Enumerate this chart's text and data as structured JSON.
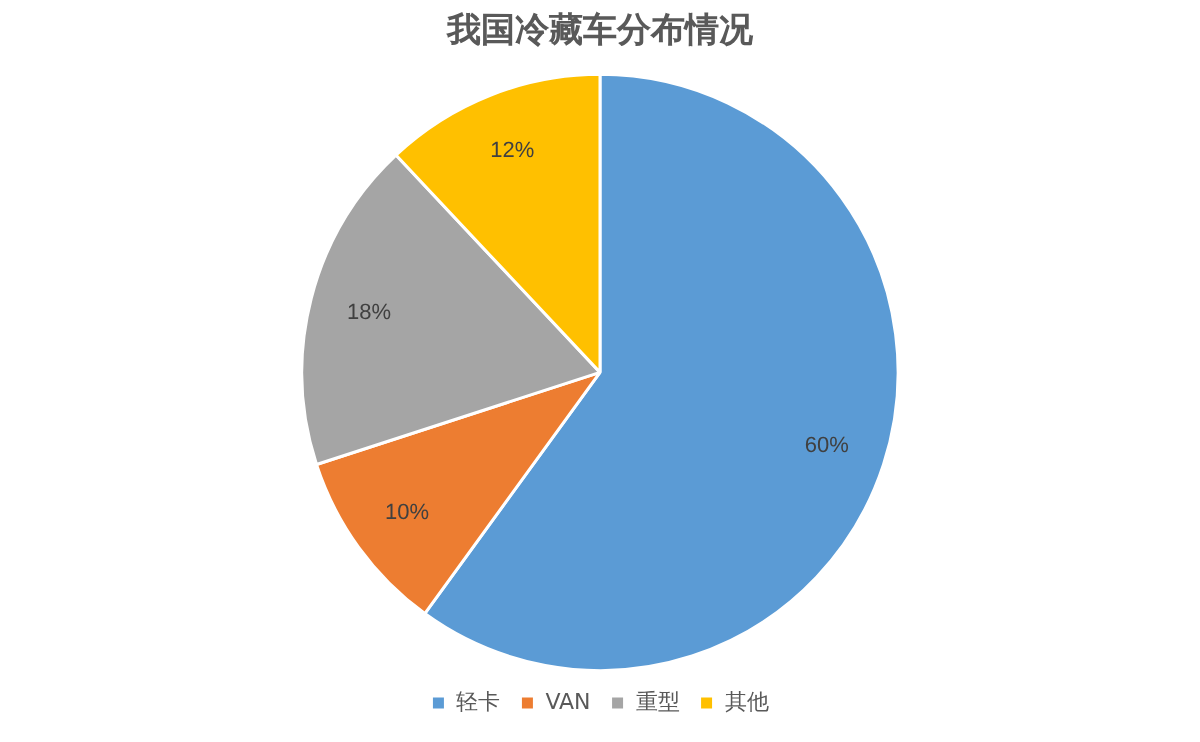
{
  "chart_data": {
    "type": "pie",
    "title": "我国冷藏车分布情况",
    "categories": [
      "轻卡",
      "VAN",
      "重型",
      "其他"
    ],
    "values": [
      60,
      10,
      18,
      12
    ],
    "colors": [
      "#5b9bd5",
      "#ed7d31",
      "#a5a5a5",
      "#ffc000"
    ],
    "value_labels": [
      "60%",
      "10%",
      "18%",
      "12%"
    ],
    "legend": "bottom"
  }
}
